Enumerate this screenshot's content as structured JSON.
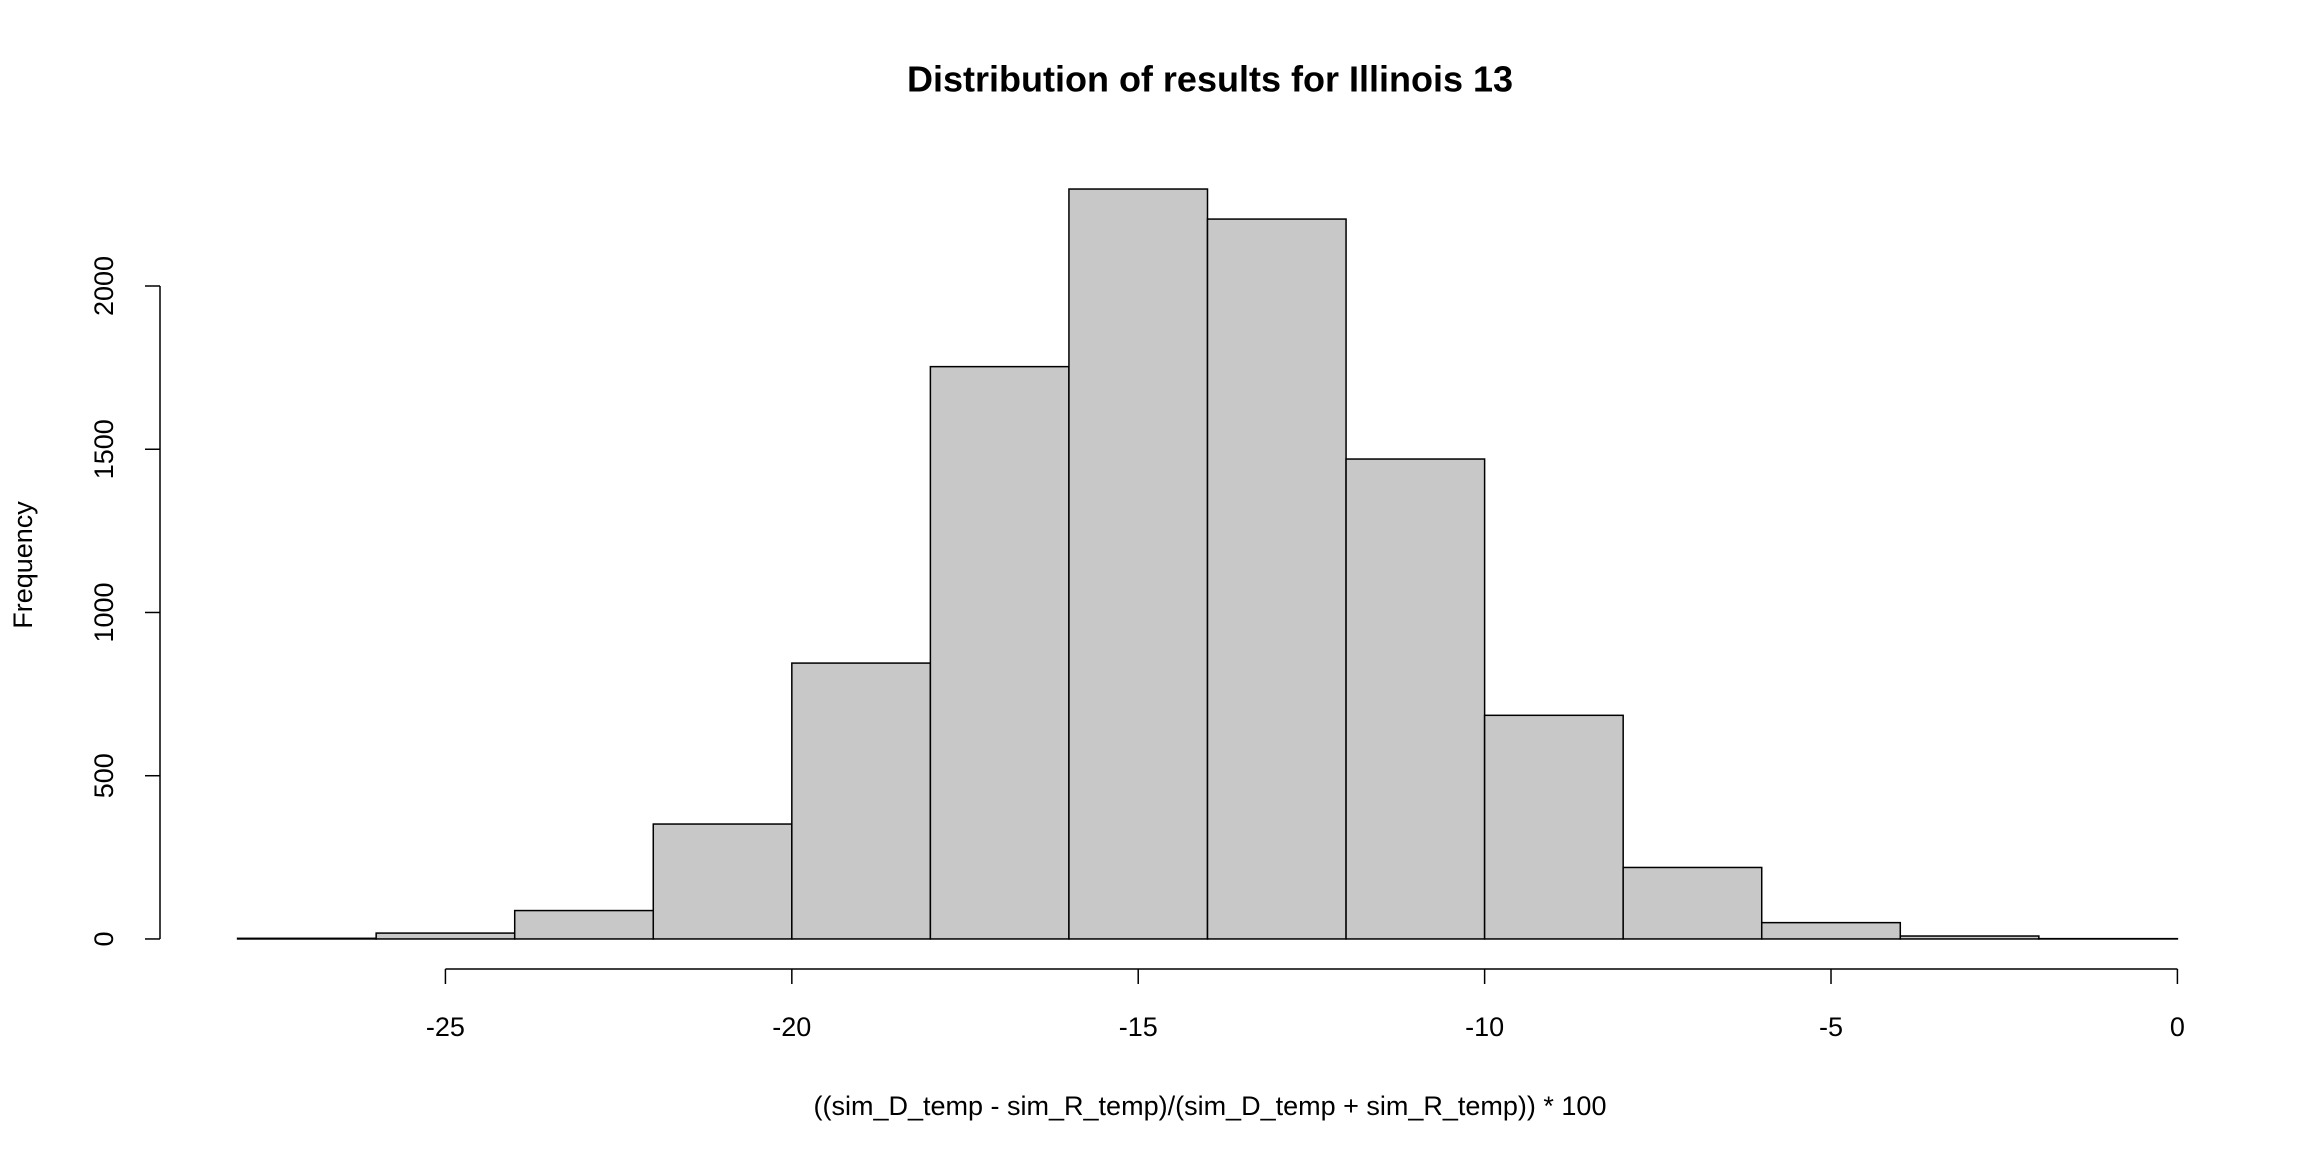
{
  "chart_data": {
    "type": "histogram",
    "title": "Distribution of results for Illinois 13",
    "x_label": "((sim_D_temp - sim_R_temp)/(sim_D_temp + sim_R_temp)) * 100",
    "y_label": "Frequency",
    "bins": [
      -28,
      -26,
      -24,
      -22,
      -20,
      -18,
      -16,
      -14,
      -12,
      -10,
      -8,
      -6,
      -4,
      -2,
      0
    ],
    "counts": [
      2,
      18,
      87,
      352,
      845,
      1753,
      2297,
      2205,
      1470,
      685,
      219,
      50,
      9,
      1
    ],
    "color": "#c8c8c8",
    "xlim": [
      -29.12,
      1.12
    ],
    "xticks": [
      -25,
      -20,
      -15,
      -10,
      -5,
      0
    ],
    "ylim": [
      -92,
      2389
    ],
    "yticks": [
      0,
      500,
      1000,
      1500,
      2000
    ]
  }
}
